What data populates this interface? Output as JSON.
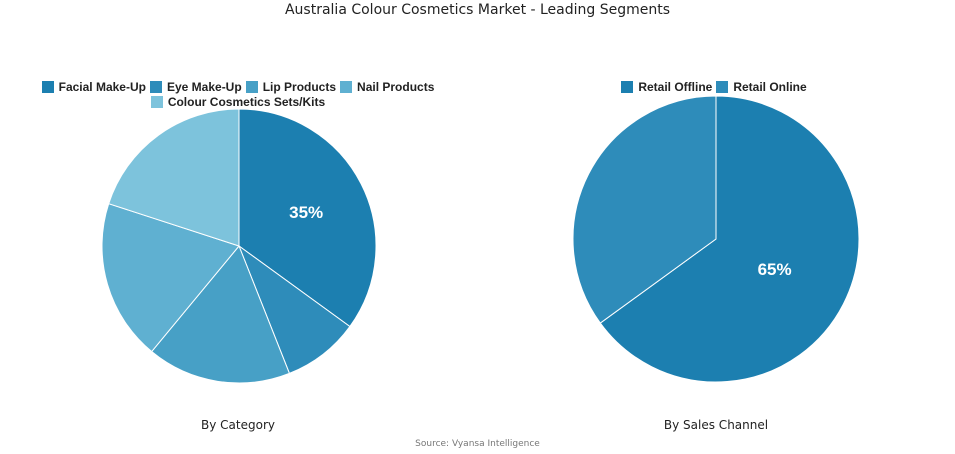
{
  "title": "Australia Colour Cosmetics Market - Leading Segments",
  "source": "Source: Vyansa Intelligence",
  "chart_data": [
    {
      "type": "pie",
      "title": "By Category",
      "categories": [
        "Facial Make-Up",
        "Eye Make-Up",
        "Lip Products",
        "Nail Products",
        "Colour Cosmetics Sets/Kits"
      ],
      "values": [
        35,
        9,
        17,
        19,
        20
      ],
      "colors": [
        "#1c7fb0",
        "#2e8cba",
        "#47a0c6",
        "#5fb0d1",
        "#7dc3dc"
      ],
      "labels_shown": [
        "35%",
        "",
        "",
        "",
        ""
      ],
      "legend_position": "top"
    },
    {
      "type": "pie",
      "title": "By Sales Channel",
      "categories": [
        "Retail Offline",
        "Retail Online"
      ],
      "values": [
        65,
        35
      ],
      "colors": [
        "#1c7fb0",
        "#2e8cba"
      ],
      "labels_shown": [
        "65%",
        ""
      ],
      "legend_position": "top"
    }
  ],
  "left": {
    "subtitle": "By Category",
    "legend": [
      {
        "label": "Facial Make-Up",
        "color": "#1c7fb0"
      },
      {
        "label": "Eye Make-Up",
        "color": "#2e8cba"
      },
      {
        "label": "Lip Products",
        "color": "#47a0c6"
      },
      {
        "label": "Nail Products",
        "color": "#5fb0d1"
      },
      {
        "label": "Colour Cosmetics Sets/Kits",
        "color": "#7dc3dc"
      }
    ],
    "pct_label": "35%"
  },
  "right": {
    "subtitle": "By Sales Channel",
    "legend": [
      {
        "label": "Retail Offline",
        "color": "#1c7fb0"
      },
      {
        "label": "Retail Online",
        "color": "#2e8cba"
      }
    ],
    "pct_label": "65%"
  }
}
